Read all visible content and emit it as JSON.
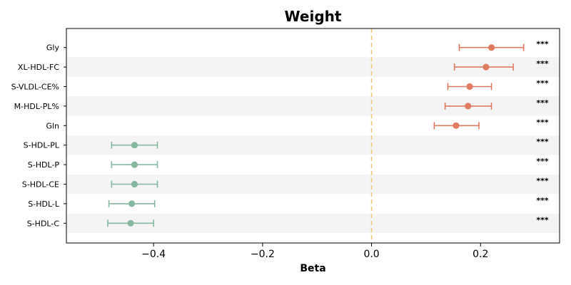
{
  "chart_data": {
    "type": "forest",
    "title": "Weight",
    "xlabel": "Beta",
    "ylabel": "",
    "xlim": [
      -0.56,
      0.345
    ],
    "xticks": [
      -0.4,
      -0.2,
      0.0,
      0.2
    ],
    "xtick_labels": [
      "−0.4",
      "−0.2",
      "0.0",
      "0.2"
    ],
    "reference_line": 0.0,
    "reference_line_color": "#F2C97B",
    "grid": false,
    "row_band_color": "#F4F4F4",
    "positive_color": "#E07B61",
    "negative_color": "#86B8A0",
    "rows": [
      {
        "label": "Gly",
        "beta": 0.22,
        "ci_low": 0.161,
        "ci_high": 0.279,
        "significance": "***"
      },
      {
        "label": "XL-HDL-FC",
        "beta": 0.21,
        "ci_low": 0.152,
        "ci_high": 0.26,
        "significance": "***"
      },
      {
        "label": "S-VLDL-CE%",
        "beta": 0.18,
        "ci_low": 0.14,
        "ci_high": 0.22,
        "significance": "***"
      },
      {
        "label": "M-HDL-PL%",
        "beta": 0.177,
        "ci_low": 0.135,
        "ci_high": 0.22,
        "significance": "***"
      },
      {
        "label": "Gln",
        "beta": 0.155,
        "ci_low": 0.115,
        "ci_high": 0.197,
        "significance": "***"
      },
      {
        "label": "S-HDL-PL",
        "beta": -0.435,
        "ci_low": -0.477,
        "ci_high": -0.393,
        "significance": "***"
      },
      {
        "label": "S-HDL-P",
        "beta": -0.435,
        "ci_low": -0.477,
        "ci_high": -0.393,
        "significance": "***"
      },
      {
        "label": "S-HDL-CE",
        "beta": -0.435,
        "ci_low": -0.477,
        "ci_high": -0.393,
        "significance": "***"
      },
      {
        "label": "S-HDL-L",
        "beta": -0.44,
        "ci_low": -0.482,
        "ci_high": -0.398,
        "significance": "***"
      },
      {
        "label": "S-HDL-C",
        "beta": -0.442,
        "ci_low": -0.484,
        "ci_high": -0.4,
        "significance": "***"
      }
    ]
  }
}
